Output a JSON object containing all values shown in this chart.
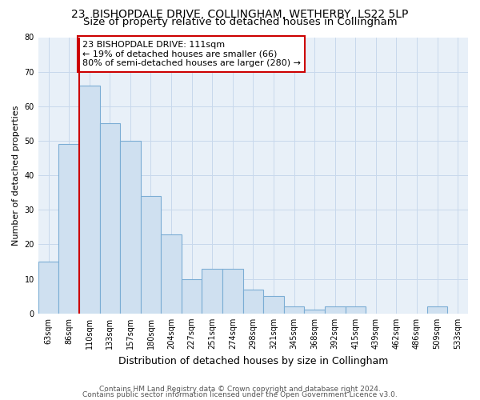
{
  "title1": "23, BISHOPDALE DRIVE, COLLINGHAM, WETHERBY, LS22 5LP",
  "title2": "Size of property relative to detached houses in Collingham",
  "xlabel": "Distribution of detached houses by size in Collingham",
  "ylabel": "Number of detached properties",
  "categories": [
    "63sqm",
    "86sqm",
    "110sqm",
    "133sqm",
    "157sqm",
    "180sqm",
    "204sqm",
    "227sqm",
    "251sqm",
    "274sqm",
    "298sqm",
    "321sqm",
    "345sqm",
    "368sqm",
    "392sqm",
    "415sqm",
    "439sqm",
    "462sqm",
    "486sqm",
    "509sqm",
    "533sqm"
  ],
  "values": [
    15,
    49,
    66,
    55,
    50,
    34,
    23,
    10,
    13,
    13,
    7,
    5,
    2,
    1,
    2,
    2,
    0,
    0,
    0,
    2,
    0
  ],
  "bar_color": "#cfe0f0",
  "bar_edge_color": "#7badd4",
  "vline_color": "#cc0000",
  "annotation_text": "23 BISHOPDALE DRIVE: 111sqm\n← 19% of detached houses are smaller (66)\n80% of semi-detached houses are larger (280) →",
  "annotation_box_color": "#ffffff",
  "annotation_box_edge": "#cc0000",
  "ylim": [
    0,
    80
  ],
  "yticks": [
    0,
    10,
    20,
    30,
    40,
    50,
    60,
    70,
    80
  ],
  "grid_color": "#c8d8ec",
  "background_color": "#e8f0f8",
  "footer1": "Contains HM Land Registry data © Crown copyright and database right 2024.",
  "footer2": "Contains public sector information licensed under the Open Government Licence v3.0.",
  "title1_fontsize": 10,
  "title2_fontsize": 9.5,
  "xlabel_fontsize": 9,
  "ylabel_fontsize": 8,
  "tick_fontsize": 7,
  "annotation_fontsize": 8,
  "footer_fontsize": 6.5
}
